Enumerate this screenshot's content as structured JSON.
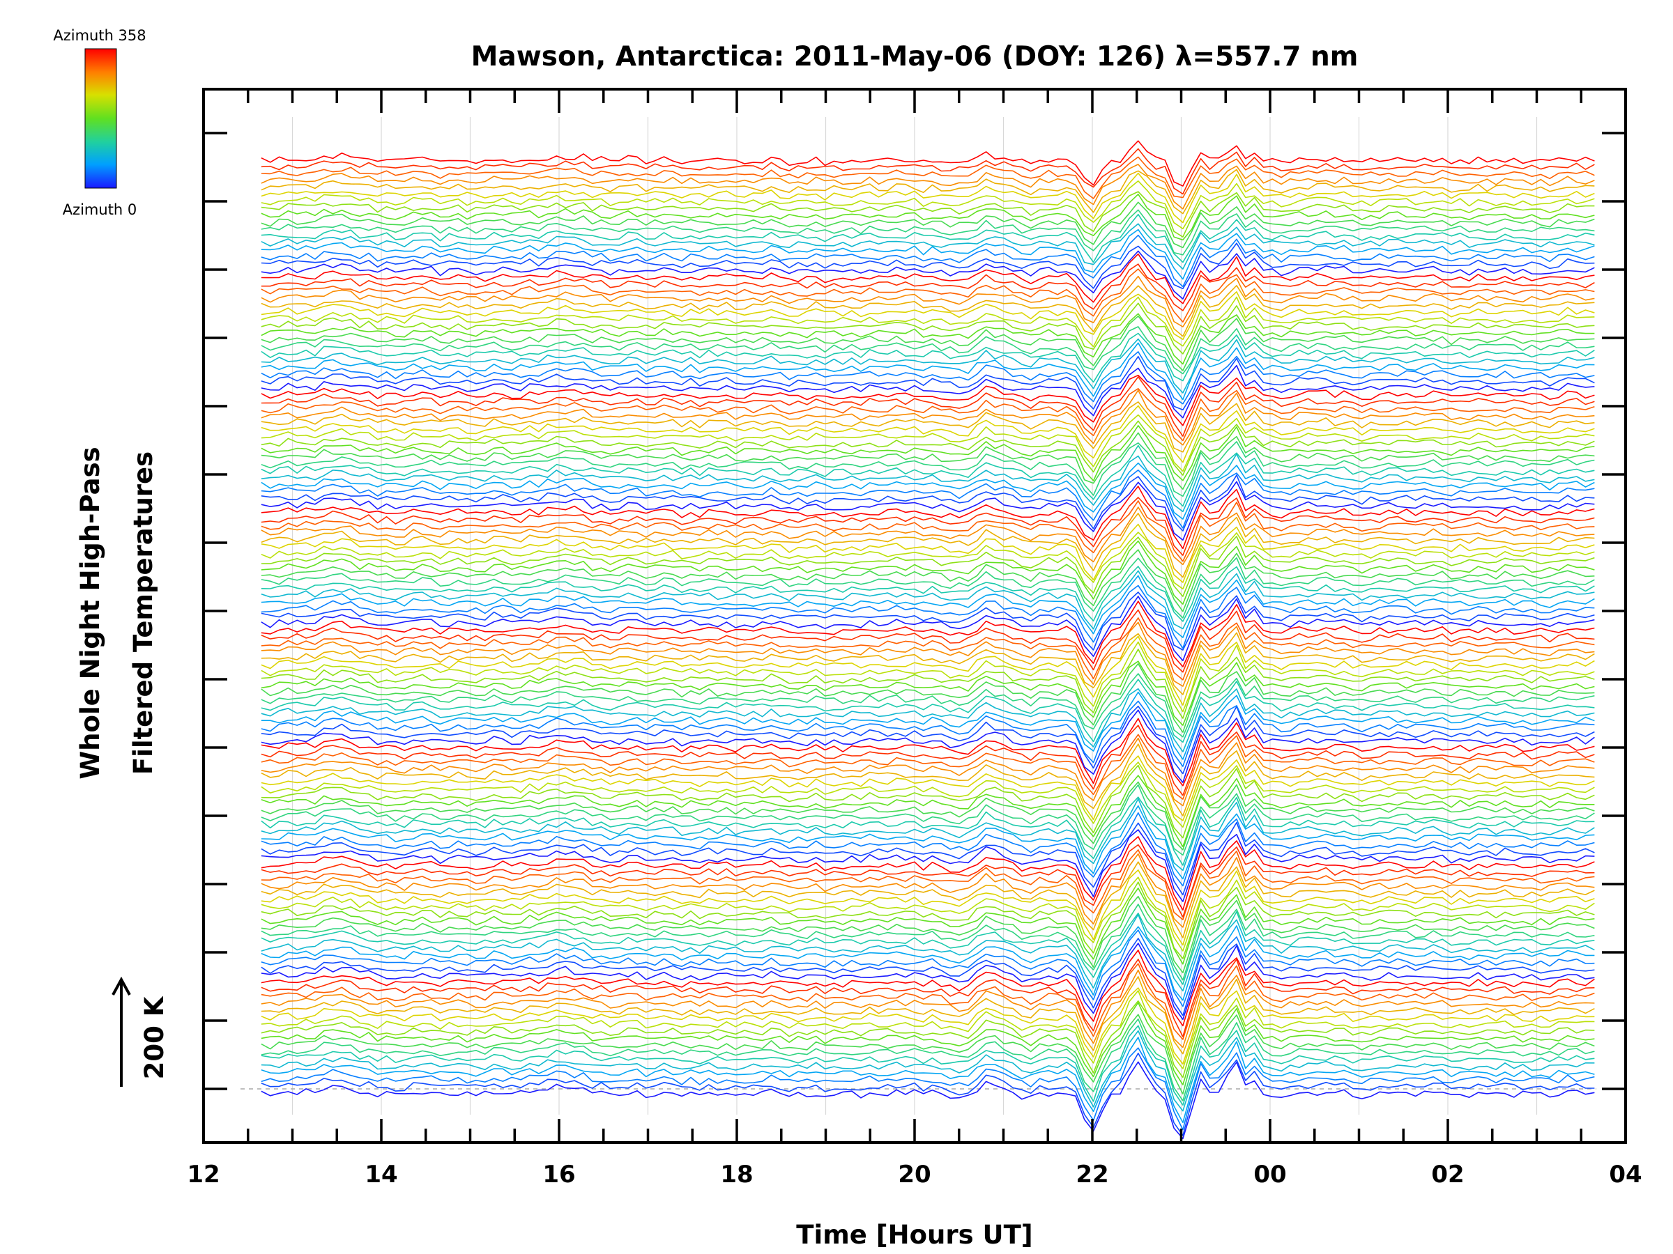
{
  "chart_data": {
    "type": "line",
    "title": "Mawson, Antarctica: 2011-May-06 (DOY: 126) λ=557.7 nm",
    "xlabel": "Time [Hours UT]",
    "ylabel": [
      "Whole Night High-Pass",
      "Filtered Temperatures"
    ],
    "scale_bar_label": "200 K",
    "x_tick_labels": [
      "12",
      "14",
      "16",
      "18",
      "20",
      "22",
      "00",
      "02",
      "04"
    ],
    "xlim_hours": [
      12,
      28
    ],
    "xticks_hours": [
      12,
      14,
      16,
      18,
      20,
      22,
      24,
      26,
      28
    ],
    "data_range_hours": [
      12.65,
      27.65
    ],
    "colorbar": {
      "max_label": "Azimuth 358",
      "min_label": "Azimuth 0",
      "colormap": "rainbow",
      "colors": [
        "#1a1aff",
        "#00a0ff",
        "#20d0a0",
        "#60e020",
        "#d8e000",
        "#ff8000",
        "#ff0000"
      ]
    },
    "series_groups": 8,
    "traces_per_group": 17,
    "series_description": "Stacked high-pass filtered temperature traces, one per azimuth, each offset vertically; colors map azimuth from 0 (blue) to 358 (red).",
    "grid": "vertical lines each hour",
    "baseline_dashed": true
  }
}
